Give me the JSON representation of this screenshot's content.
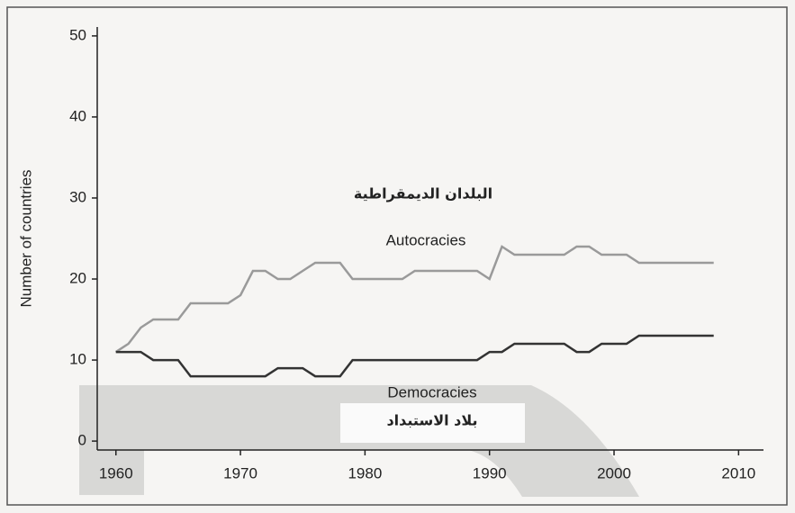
{
  "chart_data": {
    "type": "line",
    "y_label": "Number of countries",
    "x": [
      1960,
      1961,
      1962,
      1963,
      1964,
      1965,
      1966,
      1967,
      1968,
      1969,
      1970,
      1971,
      1972,
      1973,
      1974,
      1975,
      1976,
      1977,
      1978,
      1979,
      1980,
      1981,
      1982,
      1983,
      1984,
      1985,
      1986,
      1987,
      1988,
      1989,
      1990,
      1991,
      1992,
      1993,
      1994,
      1995,
      1996,
      1997,
      1998,
      1999,
      2000,
      2001,
      2002,
      2003,
      2004,
      2005,
      2006,
      2007,
      2008
    ],
    "series": [
      {
        "name": "Autocracies",
        "color": "#9a9a9a",
        "values": [
          11,
          12,
          14,
          15,
          15,
          15,
          17,
          17,
          17,
          17,
          18,
          21,
          21,
          20,
          20,
          21,
          22,
          22,
          22,
          20,
          20,
          20,
          20,
          20,
          21,
          21,
          21,
          21,
          21,
          21,
          20,
          24,
          23,
          23,
          23,
          23,
          23,
          24,
          24,
          23,
          23,
          23,
          22,
          22,
          22,
          22,
          22,
          22,
          22
        ]
      },
      {
        "name": "Democracies",
        "color": "#333333",
        "values": [
          11,
          11,
          11,
          10,
          10,
          10,
          8,
          8,
          8,
          8,
          8,
          8,
          8,
          9,
          9,
          9,
          8,
          8,
          8,
          10,
          10,
          10,
          10,
          10,
          10,
          10,
          10,
          10,
          10,
          10,
          11,
          11,
          12,
          12,
          12,
          12,
          12,
          11,
          11,
          12,
          12,
          12,
          13,
          13,
          13,
          13,
          13,
          13,
          13
        ]
      }
    ],
    "annotations": [
      "البلدان الديمقراطية",
      "بلاد الاستبداد"
    ],
    "xlim": [
      1958.5,
      2012
    ],
    "xticks": [
      1960,
      1970,
      1980,
      1990,
      2000,
      2010
    ],
    "ylim": [
      -1.1,
      51.1
    ],
    "yticks": [
      0,
      10,
      20,
      30,
      40,
      50
    ]
  }
}
